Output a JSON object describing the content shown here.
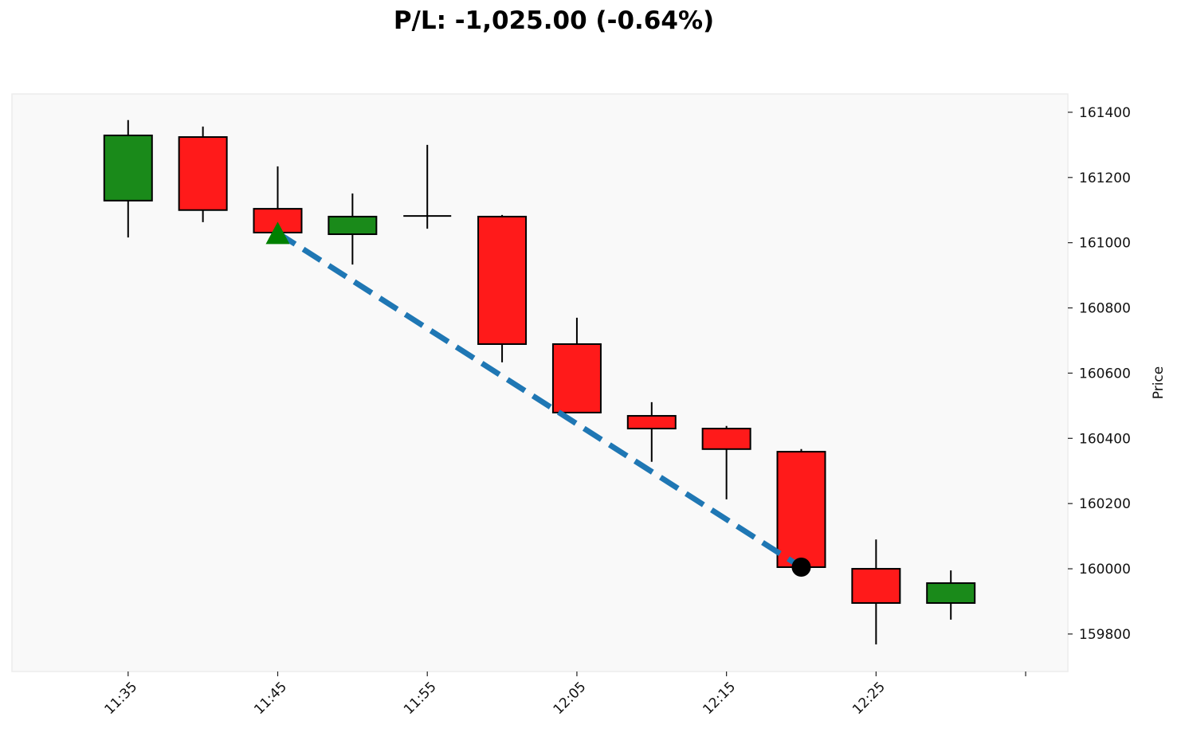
{
  "chart_data": {
    "type": "candlestick",
    "title": "P/L: -1,025.00 (-0.64%)",
    "xlabel": "",
    "ylabel": "Price",
    "y_axis_position": "right",
    "ylim": [
      159685,
      161456
    ],
    "xlim": [
      "11:27",
      "12:38"
    ],
    "yticks": [
      159800,
      160000,
      160200,
      160400,
      160600,
      160800,
      161000,
      161200,
      161400
    ],
    "xticks": [
      "11:35",
      "11:45",
      "11:55",
      "12:05",
      "12:15",
      "12:25",
      "12:35"
    ],
    "xtick_labels": [
      "11:35",
      "11:45",
      "11:55",
      "12:05",
      "12:15",
      "12:25",
      ""
    ],
    "grid": false,
    "colors": {
      "up": "#1a8a1a",
      "down": "#ff1a1a",
      "background": "#f9f9f9",
      "trade_line": "#1f77b4",
      "entry": "#008000",
      "exit": "#000000"
    },
    "candles": [
      {
        "time": "11:35",
        "open": 161129,
        "high": 161376,
        "low": 161016,
        "close": 161329
      },
      {
        "time": "11:40",
        "open": 161324,
        "high": 161356,
        "low": 161063,
        "close": 161100
      },
      {
        "time": "11:45",
        "open": 161104,
        "high": 161234,
        "low": 161031,
        "close": 161031
      },
      {
        "time": "11:50",
        "open": 161026,
        "high": 161151,
        "low": 160933,
        "close": 161080
      },
      {
        "time": "11:55",
        "open": 161082,
        "high": 161300,
        "low": 161043,
        "close": 161082
      },
      {
        "time": "12:00",
        "open": 161080,
        "high": 161085,
        "low": 160633,
        "close": 160689
      },
      {
        "time": "12:05",
        "open": 160689,
        "high": 160770,
        "low": 160479,
        "close": 160479
      },
      {
        "time": "12:10",
        "open": 160469,
        "high": 160511,
        "low": 160328,
        "close": 160430
      },
      {
        "time": "12:15",
        "open": 160430,
        "high": 160438,
        "low": 160213,
        "close": 160367
      },
      {
        "time": "12:20",
        "open": 160359,
        "high": 160367,
        "low": 160005,
        "close": 160005
      },
      {
        "time": "12:25",
        "open": 160000,
        "high": 160090,
        "low": 159768,
        "close": 159895
      },
      {
        "time": "12:30",
        "open": 159895,
        "high": 159995,
        "low": 159844,
        "close": 159956
      }
    ],
    "trade": {
      "entry": {
        "time": "11:45",
        "price": 161030,
        "marker": "triangle-up"
      },
      "exit": {
        "time": "12:20",
        "price": 160005,
        "marker": "circle"
      },
      "line_style": "dashed"
    }
  }
}
